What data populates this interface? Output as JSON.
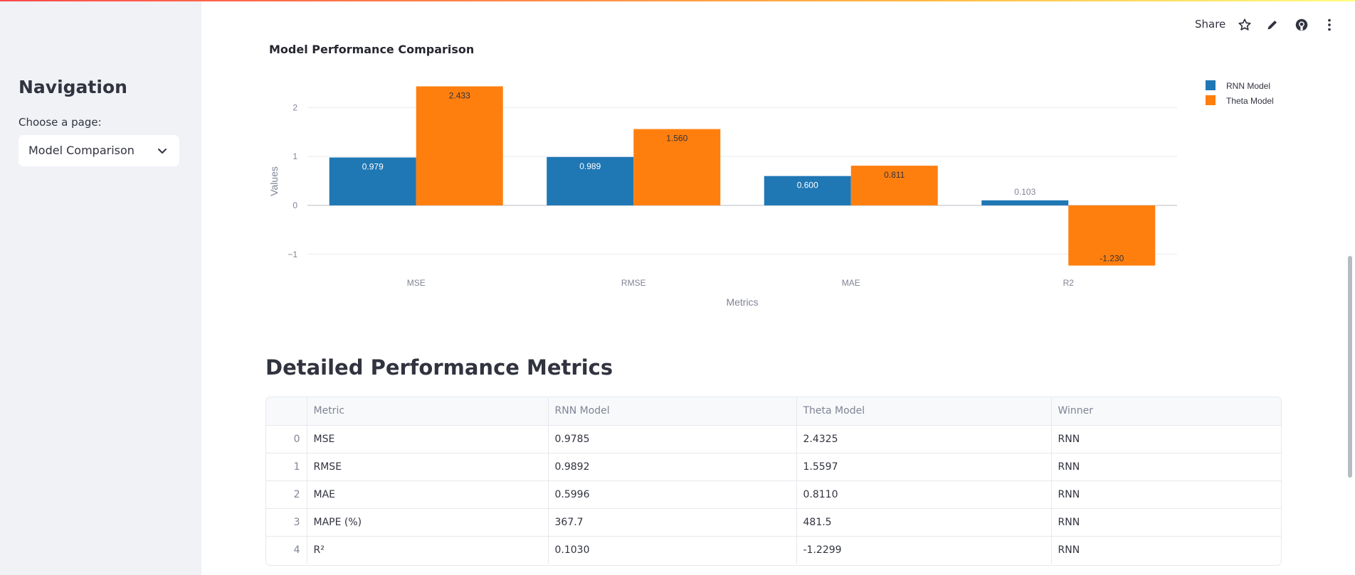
{
  "sidebar": {
    "title": "Navigation",
    "label": "Choose a page:",
    "selected_page": "Model Comparison"
  },
  "toolbar": {
    "share_label": "Share",
    "icons": [
      "star-icon",
      "pencil-icon",
      "github-icon",
      "more-vert-icon"
    ]
  },
  "chart": {
    "title": "Model Performance Comparison"
  },
  "chart_data": {
    "type": "bar",
    "categories": [
      "MSE",
      "RMSE",
      "MAE",
      "R2"
    ],
    "series": [
      {
        "name": "RNN Model",
        "values": [
          0.979,
          0.989,
          0.6,
          0.103
        ],
        "labels": [
          "0.979",
          "0.989",
          "0.600",
          "0.103"
        ],
        "color": "#1f77b4"
      },
      {
        "name": "Theta Model",
        "values": [
          2.433,
          1.56,
          0.811,
          -1.23
        ],
        "labels": [
          "2.433",
          "1.560",
          "0.811",
          "-1.230"
        ],
        "color": "#ff7f0e"
      }
    ],
    "xlabel": "Metrics",
    "ylabel": "Values",
    "ylim": [
      -1.25,
      2.6
    ],
    "yticks": [
      -1,
      0,
      1,
      2
    ],
    "ytick_labels": [
      "−1",
      "0",
      "1",
      "2"
    ],
    "legend_position": "top-right",
    "grid": true
  },
  "metrics": {
    "title": "Detailed Performance Metrics",
    "columns": [
      "",
      "Metric",
      "RNN Model",
      "Theta Model",
      "Winner"
    ],
    "rows": [
      [
        "0",
        "MSE",
        "0.9785",
        "2.4325",
        "RNN"
      ],
      [
        "1",
        "RMSE",
        "0.9892",
        "1.5597",
        "RNN"
      ],
      [
        "2",
        "MAE",
        "0.5996",
        "0.8110",
        "RNN"
      ],
      [
        "3",
        "MAPE (%)",
        "367.7",
        "481.5",
        "RNN"
      ],
      [
        "4",
        "R²",
        "0.1030",
        "-1.2299",
        "RNN"
      ]
    ]
  }
}
